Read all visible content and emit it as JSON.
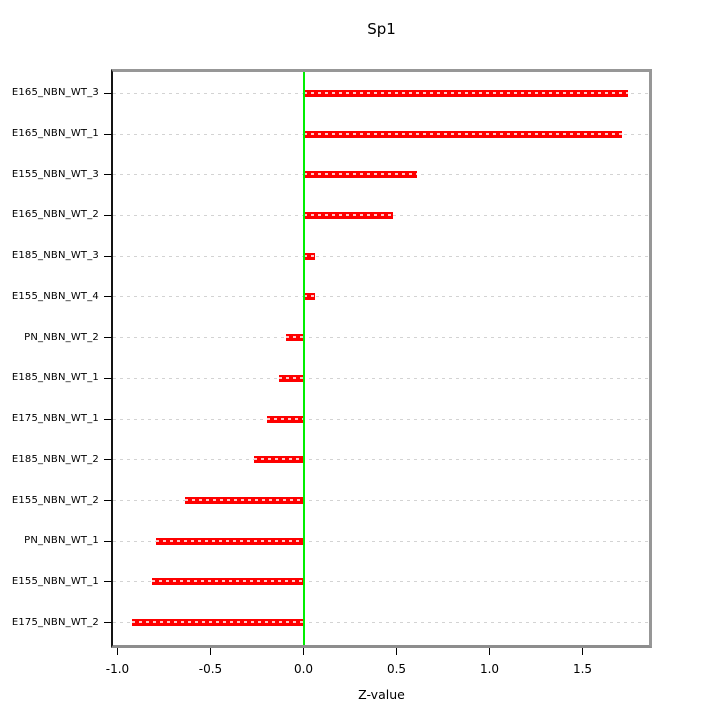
{
  "title": "Sp1",
  "chart_data": {
    "type": "bar",
    "orientation": "horizontal",
    "title": "Sp1",
    "xlabel": "Z-value",
    "categories": [
      "E165_NBN_WT_3",
      "E165_NBN_WT_1",
      "E155_NBN_WT_3",
      "E165_NBN_WT_2",
      "E185_NBN_WT_3",
      "E155_NBN_WT_4",
      "PN_NBN_WT_2",
      "E185_NBN_WT_1",
      "E175_NBN_WT_1",
      "E185_NBN_WT_2",
      "E155_NBN_WT_2",
      "PN_NBN_WT_1",
      "E155_NBN_WT_1",
      "E175_NBN_WT_2"
    ],
    "values": [
      1.746,
      1.714,
      0.608,
      0.48,
      0.063,
      0.06,
      -0.094,
      -0.133,
      -0.198,
      -0.266,
      -0.637,
      -0.793,
      -0.815,
      -0.922
    ],
    "xlim": [
      -1.02,
      1.86
    ],
    "xticks": [
      -1.0,
      -0.5,
      0.0,
      0.5,
      1.0,
      1.5
    ],
    "xtick_labels": [
      "-1.0",
      "-0.5",
      "0.0",
      "0.5",
      "1.0",
      "1.5"
    ],
    "reference_line_x": 0.0,
    "grid": "horizontal-dashed-lightgray",
    "legend": "none",
    "colors": {
      "bar": "#fe0000",
      "zero_line": "#00ef00",
      "gridline": "#d3d3d3",
      "box_border": "#979797",
      "axis": "#000000",
      "text": "#000000",
      "background": "#ffffff"
    }
  }
}
